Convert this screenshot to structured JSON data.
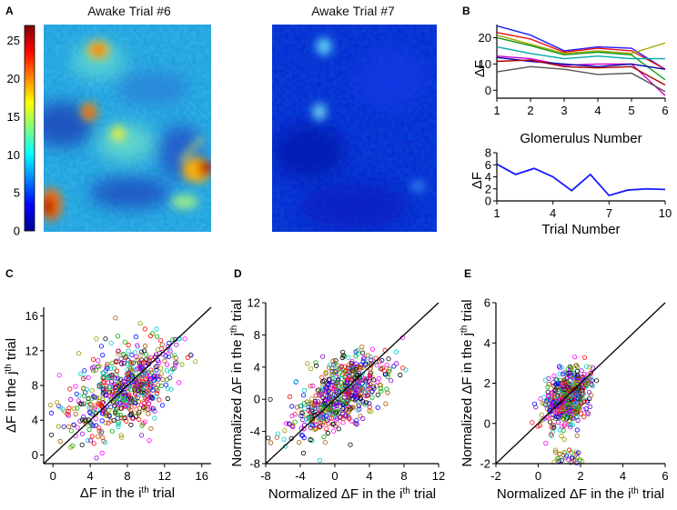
{
  "panels": {
    "A": {
      "letter": "A",
      "colorbar_ticks": [
        "0",
        "5",
        "10",
        "15",
        "20",
        "25"
      ],
      "colorbar_range": [
        0,
        27
      ],
      "images": [
        {
          "title": "Awake Trial #6"
        },
        {
          "title": "Awake Trial #7"
        }
      ]
    },
    "B": {
      "letter": "B"
    },
    "C": {
      "letter": "C"
    },
    "D": {
      "letter": "D"
    },
    "E": {
      "letter": "E"
    }
  },
  "chart_data": [
    {
      "id": "B_top",
      "type": "line",
      "xlabel": "Glomerulus Number",
      "ylabel": "ΔF",
      "x": [
        1,
        2,
        3,
        4,
        5,
        6
      ],
      "xticks": [
        "1",
        "2",
        "3",
        "4",
        "5",
        "6"
      ],
      "yticks": [
        "0",
        "10",
        "20"
      ],
      "xlim": [
        1,
        6
      ],
      "ylim": [
        -3,
        25
      ],
      "series": [
        {
          "name": "blue",
          "color": "#1a1aff",
          "values": [
            24.5,
            21,
            15,
            16.5,
            16,
            8
          ]
        },
        {
          "name": "red",
          "color": "#ee1111",
          "values": [
            22,
            19.5,
            14.5,
            16,
            15,
            8
          ]
        },
        {
          "name": "olive",
          "color": "#a6a600",
          "values": [
            21,
            17.5,
            14,
            15,
            14,
            18
          ]
        },
        {
          "name": "green",
          "color": "#119911",
          "values": [
            20,
            17,
            13.5,
            14.5,
            13.5,
            4
          ]
        },
        {
          "name": "cyan",
          "color": "#00aaaa",
          "values": [
            16.5,
            14,
            12,
            13,
            12,
            12
          ]
        },
        {
          "name": "magenta",
          "color": "#cc00cc",
          "values": [
            13,
            12,
            9.5,
            10,
            10,
            -2
          ]
        },
        {
          "name": "darkblue",
          "color": "#0000aa",
          "values": [
            12.5,
            11,
            10,
            9,
            10,
            8
          ]
        },
        {
          "name": "darkred",
          "color": "#aa0000",
          "values": [
            11,
            11.5,
            9,
            8.5,
            9,
            2
          ]
        },
        {
          "name": "gray",
          "color": "#555555",
          "values": [
            7,
            9,
            8,
            6,
            6.5,
            -0.5
          ]
        }
      ]
    },
    {
      "id": "B_bottom",
      "type": "line",
      "xlabel": "Trial Number",
      "ylabel": "ΔF",
      "x": [
        1,
        2,
        3,
        4,
        5,
        6,
        7,
        8,
        9,
        10
      ],
      "values": [
        6.1,
        4.4,
        5.4,
        4.0,
        1.7,
        4.4,
        0.9,
        1.8,
        2.0,
        1.9
      ],
      "xticks": [
        "1",
        "4",
        "7",
        "10"
      ],
      "yticks": [
        "0",
        "2",
        "4",
        "6",
        "8"
      ],
      "xlim": [
        1,
        10
      ],
      "ylim": [
        0,
        8
      ],
      "color": "#1a1aff"
    },
    {
      "id": "C",
      "type": "scatter",
      "xlabel": "ΔF in the ith trial",
      "ylabel": "ΔF in the jth trial",
      "xlabel_parts": [
        "ΔF in the i",
        "th",
        " trial"
      ],
      "ylabel_parts": [
        "ΔF in the j",
        "th",
        " trial"
      ],
      "xticks": [
        "0",
        "4",
        "8",
        "12",
        "16"
      ],
      "yticks": [
        "0",
        "4",
        "8",
        "12",
        "16"
      ],
      "xlim": [
        -1,
        17
      ],
      "ylim": [
        -1,
        17
      ],
      "diagonal": true,
      "cluster": {
        "cx": 7.5,
        "cy": 7.5,
        "sx": 3.0,
        "sy": 2.6,
        "rho": 0.45,
        "n": 620
      }
    },
    {
      "id": "D",
      "type": "scatter",
      "xlabel": "Normalized ΔF in the ith trial",
      "ylabel": "Normalized ΔF in the jth trial",
      "xlabel_parts": [
        "Normalized ΔF in the i",
        "th",
        " trial"
      ],
      "ylabel_parts": [
        "Normalized ΔF in the j",
        "th",
        " trial"
      ],
      "xticks": [
        "-8",
        "-4",
        "0",
        "4",
        "8",
        "12"
      ],
      "yticks": [
        "-8",
        "-4",
        "0",
        "4",
        "8",
        "12"
      ],
      "xlim": [
        -8,
        12
      ],
      "ylim": [
        -8,
        12
      ],
      "diagonal": true,
      "cluster": {
        "cx": 0.8,
        "cy": 0.8,
        "sx": 2.5,
        "sy": 2.5,
        "rho": 0.6,
        "n": 620
      }
    },
    {
      "id": "E",
      "type": "scatter",
      "xlabel": "Normalized ΔF in the ith trial",
      "ylabel": "Normalized ΔF in the jth trial",
      "xlabel_parts": [
        "Normalized ΔF in the i",
        "th",
        " trial"
      ],
      "ylabel_parts": [
        "Normalized ΔF in the j",
        "th",
        " trial"
      ],
      "xticks": [
        "-2",
        "0",
        "2",
        "4",
        "6"
      ],
      "yticks": [
        "-2",
        "0",
        "2",
        "4",
        "6"
      ],
      "xlim": [
        -2,
        6
      ],
      "ylim": [
        -2,
        6
      ],
      "diagonal": true,
      "cluster": {
        "cx": 1.4,
        "cy": 1.3,
        "sx": 0.55,
        "sy": 0.75,
        "rho": 0.4,
        "n": 560
      }
    }
  ],
  "point_colors": [
    "#ff0000",
    "#0000ff",
    "#00aa00",
    "#ff00ff",
    "#00cccc",
    "#999900",
    "#000000",
    "#aa5500",
    "#8800cc"
  ]
}
